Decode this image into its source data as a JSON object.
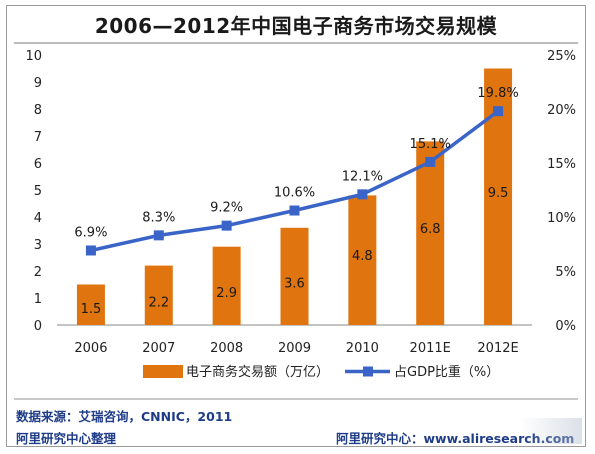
{
  "chart_data": {
    "type": "bar+line",
    "title": "2006—2012年中国电子商务市场交易规模",
    "categories": [
      "2006",
      "2007",
      "2008",
      "2009",
      "2010",
      "2011E",
      "2012E"
    ],
    "series": [
      {
        "name": "电子商务交易额（万亿）",
        "type": "bar",
        "axis": "left",
        "color": "#e0740e",
        "values": [
          1.5,
          2.2,
          2.9,
          3.6,
          4.8,
          6.8,
          9.5
        ],
        "labels": [
          "1.5",
          "2.2",
          "2.9",
          "3.6",
          "4.8",
          "6.8",
          "9.5"
        ]
      },
      {
        "name": "占GDP比重（%）",
        "type": "line",
        "axis": "right",
        "color": "#3a64c8",
        "values": [
          6.9,
          8.3,
          9.2,
          10.6,
          12.1,
          15.1,
          19.8
        ],
        "labels": [
          "6.9%",
          "8.3%",
          "9.2%",
          "10.6%",
          "12.1%",
          "15.1%",
          "19.8%"
        ]
      }
    ],
    "y_left": {
      "min": 0,
      "max": 10,
      "ticks": [
        "0",
        "1",
        "2",
        "3",
        "4",
        "5",
        "6",
        "7",
        "8",
        "9",
        "10"
      ]
    },
    "y_right": {
      "min": 0,
      "max": 25,
      "ticks": [
        "0%",
        "5%",
        "10%",
        "15%",
        "20%",
        "25%"
      ]
    },
    "grid": false,
    "legend_position": "bottom"
  },
  "source": {
    "line1": "数据来源：艾瑞咨询，CNNIC，2011",
    "line2": "阿里研究中心整理",
    "line3": "阿里研究中心：www.aliresearch.com"
  }
}
